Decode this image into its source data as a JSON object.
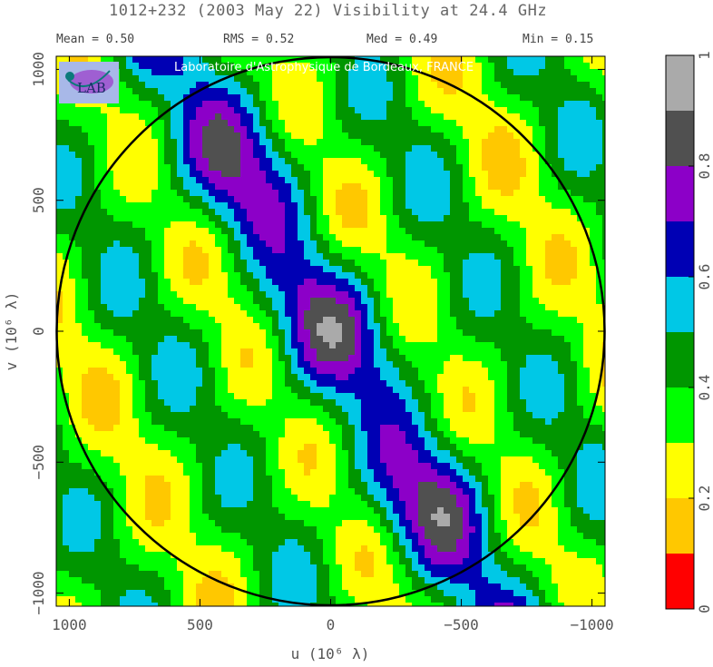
{
  "header": {
    "title": "1012+232  (2003 May 22)   Visibility at 24.4 GHz",
    "stats": [
      {
        "label": "Mean =",
        "value": "0.50"
      },
      {
        "label": "RMS =",
        "value": "0.52"
      },
      {
        "label": "Med =",
        "value": "0.49"
      },
      {
        "label": "Min =",
        "value": "0.15"
      }
    ]
  },
  "credit": "Laboratoire d'Astrophysique de Bordeaux, FRANCE",
  "logo": {
    "text": "LAB",
    "icon": "lab-logo-icon"
  },
  "chart_data": {
    "type": "heatmap",
    "title": "1012+232  (2003 May 22)   Visibility at 24.4 GHz",
    "xlabel": "u  (10⁶ λ)",
    "ylabel": "v  (10⁶ λ)",
    "xlim": [
      1050,
      -1050
    ],
    "ylim": [
      -1050,
      1050
    ],
    "x_ticks": [
      "1000",
      "500",
      "0",
      "−500",
      "−1000"
    ],
    "y_ticks": [
      "1000",
      "500",
      "0",
      "−500",
      "−1000"
    ],
    "x_tick_values": [
      1000,
      500,
      0,
      -500,
      -1000
    ],
    "y_tick_values": [
      1000,
      500,
      0,
      -500,
      -1000
    ],
    "circle_radius": 1050,
    "stripe_orientation_deg": -30,
    "colorbar": {
      "levels": [
        0,
        0.1,
        0.2,
        0.3,
        0.4,
        0.5,
        0.6,
        0.7,
        0.8,
        0.9,
        1.0
      ],
      "colors": [
        "#ff0000",
        "#ffc800",
        "#ffff00",
        "#00ff00",
        "#009600",
        "#00c8e6",
        "#0000b4",
        "#8c00c8",
        "#505050",
        "#aaaaaa"
      ],
      "tick_labels": [
        "0",
        "0.2",
        "0.4",
        "0.6",
        "0.8",
        "1"
      ],
      "tick_values": [
        0,
        0.2,
        0.4,
        0.6,
        0.8,
        1.0
      ]
    }
  }
}
